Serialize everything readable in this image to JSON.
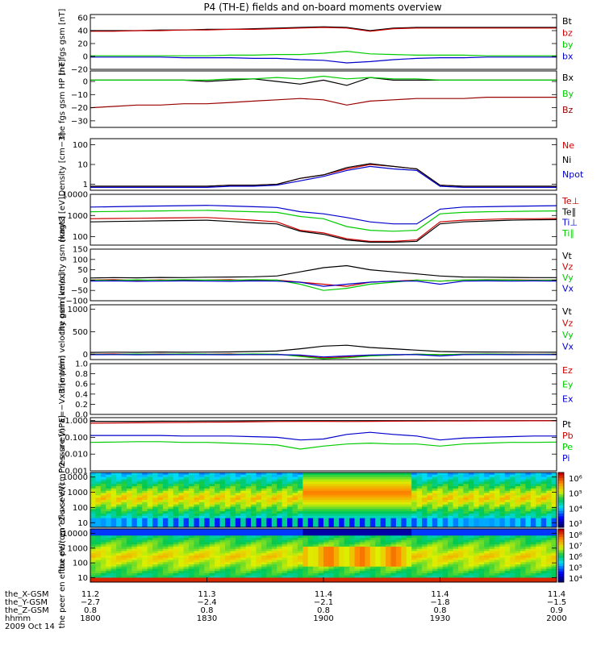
{
  "title": "P4 (TH-E) fields and on-board moments overview",
  "chart_data": [
    {
      "type": "line",
      "ylabel": "the fgs gsm [nT]",
      "ylim": [
        -20,
        65
      ],
      "yticks": [
        "60",
        "40",
        "20",
        "0",
        "−20"
      ],
      "tick_values": [
        60,
        40,
        20,
        0,
        -20
      ],
      "legend": [
        {
          "name": "Bt",
          "color": "#000000"
        },
        {
          "name": "bz",
          "color": "#cc0000"
        },
        {
          "name": "by",
          "color": "#00cc00"
        },
        {
          "name": "bx",
          "color": "#0000cc"
        }
      ],
      "series": [
        {
          "name": "Bt",
          "color": "#000000",
          "values": [
            40,
            40,
            40,
            41,
            41,
            42,
            42,
            43,
            44,
            45,
            46,
            45,
            40,
            44,
            45,
            45,
            45,
            45,
            45,
            45,
            45
          ]
        },
        {
          "name": "bz",
          "color": "#cc0000",
          "values": [
            39,
            39,
            40,
            40,
            41,
            41,
            42,
            42,
            43,
            44,
            45,
            44,
            39,
            43,
            44,
            44,
            44,
            44,
            44,
            44,
            44
          ]
        },
        {
          "name": "by",
          "color": "#00cc00",
          "values": [
            1,
            1,
            1,
            1,
            1,
            1,
            2,
            2,
            3,
            3,
            5,
            8,
            4,
            3,
            2,
            2,
            2,
            1,
            1,
            1,
            1
          ]
        },
        {
          "name": "bx",
          "color": "#0000cc",
          "values": [
            -1,
            -1,
            -1,
            -1,
            -2,
            -2,
            -2,
            -3,
            -3,
            -5,
            -6,
            -10,
            -8,
            -5,
            -3,
            -2,
            -2,
            -1,
            -1,
            -1,
            -1
          ]
        }
      ]
    },
    {
      "type": "line",
      "ylabel": "the fgs gsm HP [nT]",
      "ylim": [
        -35,
        8
      ],
      "yticks": [
        "0",
        "−10",
        "−20",
        "−30"
      ],
      "tick_values": [
        0,
        -10,
        -20,
        -30
      ],
      "legend": [
        {
          "name": "Bx",
          "color": "#000000"
        },
        {
          "name": "By",
          "color": "#00cc00"
        },
        {
          "name": "Bz",
          "color": "#990000"
        }
      ],
      "series": [
        {
          "name": "Bx",
          "color": "#000000",
          "values": [
            1,
            1,
            1,
            1,
            1,
            0,
            1,
            2,
            0,
            -2,
            1,
            -3,
            3,
            1,
            1,
            1,
            1,
            1,
            1,
            1,
            1
          ]
        },
        {
          "name": "By",
          "color": "#00cc00",
          "values": [
            1,
            1,
            1,
            1,
            1,
            1,
            2,
            2,
            3,
            2,
            4,
            2,
            3,
            2,
            2,
            1,
            1,
            1,
            1,
            1,
            1
          ]
        },
        {
          "name": "Bz",
          "color": "#990000",
          "values": [
            -20,
            -19,
            -18,
            -18,
            -17,
            -17,
            -16,
            -15,
            -14,
            -13,
            -14,
            -18,
            -15,
            -14,
            -13,
            -13,
            -13,
            -12,
            -12,
            -12,
            -12
          ]
        }
      ]
    },
    {
      "type": "line",
      "ylabel": "Density [cm−3]",
      "yscale": "log",
      "ylim": [
        0.5,
        200
      ],
      "yticks": [
        "100",
        "10",
        "1"
      ],
      "tick_values": [
        100,
        10,
        1
      ],
      "legend": [
        {
          "name": "Ne",
          "color": "#cc0000"
        },
        {
          "name": "Ni",
          "color": "#000000"
        },
        {
          "name": "Npot",
          "color": "#0000cc"
        }
      ],
      "series": [
        {
          "name": "Ne",
          "color": "#cc0000",
          "values": [
            0.8,
            0.8,
            0.8,
            0.8,
            0.8,
            0.8,
            0.9,
            0.9,
            1.0,
            2,
            3,
            6,
            10,
            8,
            6,
            0.9,
            0.8,
            0.8,
            0.8,
            0.8,
            0.8
          ]
        },
        {
          "name": "Ni",
          "color": "#000000",
          "values": [
            0.8,
            0.8,
            0.8,
            0.8,
            0.8,
            0.8,
            0.9,
            0.9,
            1.0,
            2,
            3,
            7,
            11,
            8,
            6,
            0.9,
            0.8,
            0.8,
            0.8,
            0.8,
            0.8
          ]
        },
        {
          "name": "Npot",
          "color": "#0000cc",
          "values": [
            0.7,
            0.7,
            0.7,
            0.7,
            0.7,
            0.7,
            0.8,
            0.8,
            0.9,
            1.5,
            2.5,
            5,
            8,
            6,
            5,
            0.8,
            0.7,
            0.7,
            0.7,
            0.7,
            0.7
          ]
        }
      ]
    },
    {
      "type": "line",
      "ylabel": "magt3 [eV]",
      "yscale": "log",
      "ylim": [
        40,
        10000
      ],
      "yticks": [
        "10000",
        "1000",
        "100"
      ],
      "tick_values": [
        10000,
        1000,
        100
      ],
      "legend": [
        {
          "name": "Te⊥",
          "color": "#cc0000"
        },
        {
          "name": "Te∥",
          "color": "#000000"
        },
        {
          "name": "Ti⊥",
          "color": "#0000cc"
        },
        {
          "name": "Ti∥",
          "color": "#00cc00"
        }
      ],
      "series": [
        {
          "name": "Te⊥",
          "color": "#cc0000",
          "values": [
            700,
            720,
            740,
            760,
            780,
            800,
            700,
            600,
            500,
            200,
            150,
            80,
            60,
            60,
            70,
            500,
            600,
            650,
            700,
            700,
            720
          ]
        },
        {
          "name": "Te∥",
          "color": "#000000",
          "values": [
            500,
            520,
            540,
            560,
            580,
            600,
            520,
            450,
            400,
            180,
            130,
            70,
            55,
            55,
            60,
            400,
            500,
            550,
            600,
            620,
            640
          ]
        },
        {
          "name": "Ti⊥",
          "color": "#0000cc",
          "values": [
            2500,
            2600,
            2700,
            2800,
            2900,
            3000,
            2800,
            2600,
            2400,
            1500,
            1200,
            800,
            500,
            400,
            400,
            2000,
            2500,
            2600,
            2700,
            2800,
            2900
          ]
        },
        {
          "name": "Ti∥",
          "color": "#00cc00",
          "values": [
            1500,
            1550,
            1600,
            1650,
            1700,
            1750,
            1600,
            1500,
            1400,
            900,
            700,
            300,
            200,
            180,
            200,
            1200,
            1400,
            1500,
            1550,
            1600,
            1650
          ]
        }
      ]
    },
    {
      "type": "line",
      "ylabel": "the peim velocity gsm [km/s]",
      "ylim": [
        -100,
        150
      ],
      "yticks": [
        "150",
        "100",
        "50",
        "0",
        "−50",
        "−100"
      ],
      "tick_values": [
        150,
        100,
        50,
        0,
        -50,
        -100
      ],
      "legend": [
        {
          "name": "Vt",
          "color": "#000000"
        },
        {
          "name": "Vz",
          "color": "#cc0000"
        },
        {
          "name": "Vy",
          "color": "#00cc00"
        },
        {
          "name": "Vx",
          "color": "#0000cc"
        }
      ],
      "series": [
        {
          "name": "Vt",
          "color": "#000000",
          "values": [
            10,
            12,
            11,
            13,
            12,
            14,
            15,
            16,
            20,
            40,
            60,
            70,
            50,
            40,
            30,
            20,
            15,
            14,
            13,
            12,
            12
          ]
        },
        {
          "name": "Vz",
          "color": "#cc0000",
          "values": [
            0,
            2,
            -2,
            1,
            -1,
            0,
            2,
            -3,
            0,
            -10,
            -20,
            -30,
            -10,
            -5,
            0,
            -5,
            0,
            2,
            1,
            0,
            0
          ]
        },
        {
          "name": "Vy",
          "color": "#00cc00",
          "values": [
            0,
            -2,
            1,
            -1,
            2,
            0,
            -1,
            2,
            0,
            -20,
            -50,
            -40,
            -20,
            -10,
            0,
            -5,
            0,
            1,
            0,
            -1,
            0
          ]
        },
        {
          "name": "Vx",
          "color": "#0000cc",
          "values": [
            -5,
            -4,
            -6,
            -5,
            -4,
            -5,
            -6,
            -4,
            -5,
            -10,
            -30,
            -20,
            -10,
            -5,
            -5,
            -20,
            -5,
            -4,
            -5,
            -4,
            -5
          ]
        }
      ]
    },
    {
      "type": "line",
      "ylabel": "the peim velocity gsm [km/s]",
      "ylim": [
        -120,
        1100
      ],
      "yticks": [
        "1000",
        "500",
        "0"
      ],
      "tick_values": [
        1000,
        500,
        0
      ],
      "legend": [
        {
          "name": "Vt",
          "color": "#000000"
        },
        {
          "name": "Vz",
          "color": "#cc0000"
        },
        {
          "name": "Vy",
          "color": "#00cc00"
        },
        {
          "name": "Vx",
          "color": "#0000cc"
        }
      ],
      "series": [
        {
          "name": "Vt",
          "color": "#000000",
          "values": [
            40,
            45,
            42,
            48,
            44,
            46,
            50,
            60,
            70,
            120,
            180,
            200,
            150,
            120,
            90,
            60,
            50,
            48,
            46,
            45,
            44
          ]
        },
        {
          "name": "Vz",
          "color": "#cc0000",
          "values": [
            0,
            5,
            -5,
            3,
            -3,
            0,
            5,
            -10,
            0,
            -40,
            -80,
            -60,
            -30,
            -20,
            0,
            -10,
            0,
            5,
            2,
            0,
            0
          ]
        },
        {
          "name": "Vy",
          "color": "#00cc00",
          "values": [
            0,
            -5,
            3,
            -3,
            5,
            0,
            -3,
            5,
            0,
            -50,
            -100,
            -80,
            -40,
            -20,
            0,
            -10,
            0,
            3,
            0,
            -3,
            0
          ]
        },
        {
          "name": "Vx",
          "color": "#0000cc",
          "values": [
            -10,
            -8,
            -12,
            -10,
            -8,
            -10,
            -12,
            -8,
            -10,
            -20,
            -60,
            -40,
            -20,
            -10,
            -10,
            -40,
            -10,
            -8,
            -10,
            -8,
            -10
          ]
        }
      ]
    },
    {
      "type": "line",
      "ylabel": "E=−VxB [mV/m]",
      "ylim": [
        0,
        1
      ],
      "yticks": [
        "1.0",
        "0.8",
        "0.6",
        "0.4",
        "0.2",
        "0.0"
      ],
      "tick_values": [
        1.0,
        0.8,
        0.6,
        0.4,
        0.2,
        0.0
      ],
      "legend": [
        {
          "name": "Ez",
          "color": "#cc0000"
        },
        {
          "name": "Ey",
          "color": "#00cc00"
        },
        {
          "name": "Ex",
          "color": "#0000cc"
        }
      ],
      "series": []
    },
    {
      "type": "line",
      "ylabel": "Pressure [nPa]",
      "yscale": "log",
      "ylim": [
        0.001,
        1.5
      ],
      "yticks": [
        "1.000",
        "0.100",
        "0.010",
        "0.001"
      ],
      "tick_values": [
        1.0,
        0.1,
        0.01,
        0.001
      ],
      "legend": [
        {
          "name": "Pt",
          "color": "#000000"
        },
        {
          "name": "Pb",
          "color": "#cc0000"
        },
        {
          "name": "Pe",
          "color": "#00cc00"
        },
        {
          "name": "Pi",
          "color": "#0000cc"
        }
      ],
      "series": [
        {
          "name": "Pt",
          "color": "#000000",
          "values": [
            0.9,
            0.9,
            0.9,
            0.92,
            0.93,
            0.95,
            0.96,
            0.98,
            1.0,
            1.0,
            1.0,
            1.0,
            1.0,
            1.0,
            1.0,
            1.0,
            1.0,
            1.0,
            1.0,
            1.0,
            1.0
          ]
        },
        {
          "name": "Pb",
          "color": "#cc0000",
          "values": [
            0.7,
            0.72,
            0.74,
            0.76,
            0.78,
            0.8,
            0.82,
            0.85,
            0.88,
            0.9,
            0.9,
            0.88,
            0.9,
            0.92,
            0.93,
            0.94,
            0.95,
            0.96,
            0.96,
            0.97,
            0.97
          ]
        },
        {
          "name": "Pe",
          "color": "#00cc00",
          "values": [
            0.05,
            0.052,
            0.055,
            0.055,
            0.05,
            0.05,
            0.045,
            0.04,
            0.035,
            0.02,
            0.03,
            0.04,
            0.045,
            0.04,
            0.04,
            0.03,
            0.04,
            0.045,
            0.05,
            0.05,
            0.052
          ]
        },
        {
          "name": "Pi",
          "color": "#0000cc",
          "values": [
            0.13,
            0.13,
            0.13,
            0.13,
            0.12,
            0.12,
            0.12,
            0.11,
            0.1,
            0.07,
            0.08,
            0.15,
            0.2,
            0.15,
            0.12,
            0.07,
            0.09,
            0.1,
            0.11,
            0.12,
            0.12
          ]
        }
      ]
    },
    {
      "type": "heatmap",
      "ylabel": "the peir en eflux eV/(cm^2-s-sr-eV)",
      "yscale": "log",
      "ylim": [
        5,
        20000
      ],
      "yticks": [
        "10000",
        "1000",
        "100",
        "10"
      ],
      "tick_values": [
        10000,
        1000,
        100,
        10
      ],
      "colorbar": {
        "ticks": [
          "10⁶",
          "10⁵",
          "10⁴",
          "10³"
        ]
      }
    },
    {
      "type": "heatmap",
      "ylabel": "the peer en eflux eV/(cm^2-s-sr-eV)",
      "yscale": "log",
      "ylim": [
        5,
        20000
      ],
      "yticks": [
        "10000",
        "1000",
        "100",
        "10"
      ],
      "tick_values": [
        10000,
        1000,
        100,
        10
      ],
      "colorbar": {
        "ticks": [
          "10⁸",
          "10⁷",
          "10⁶",
          "10⁵",
          "10⁴"
        ]
      }
    }
  ],
  "xaxis": {
    "rows": [
      {
        "label": "the_X-GSM",
        "values": [
          "11.2",
          "11.3",
          "11.4",
          "11.4",
          "11.4"
        ]
      },
      {
        "label": "the_Y-GSM",
        "values": [
          "−2.7",
          "−2.4",
          "−2.1",
          "−1.8",
          "−1.5"
        ]
      },
      {
        "label": "the_Z-GSM",
        "values": [
          "0.8",
          "0.8",
          "0.8",
          "0.8",
          "0.9"
        ]
      },
      {
        "label": "hhmm",
        "values": [
          "1800",
          "1830",
          "1900",
          "1930",
          "2000"
        ]
      }
    ],
    "date": "2009 Oct 14",
    "time_range": [
      1800,
      2000
    ]
  }
}
